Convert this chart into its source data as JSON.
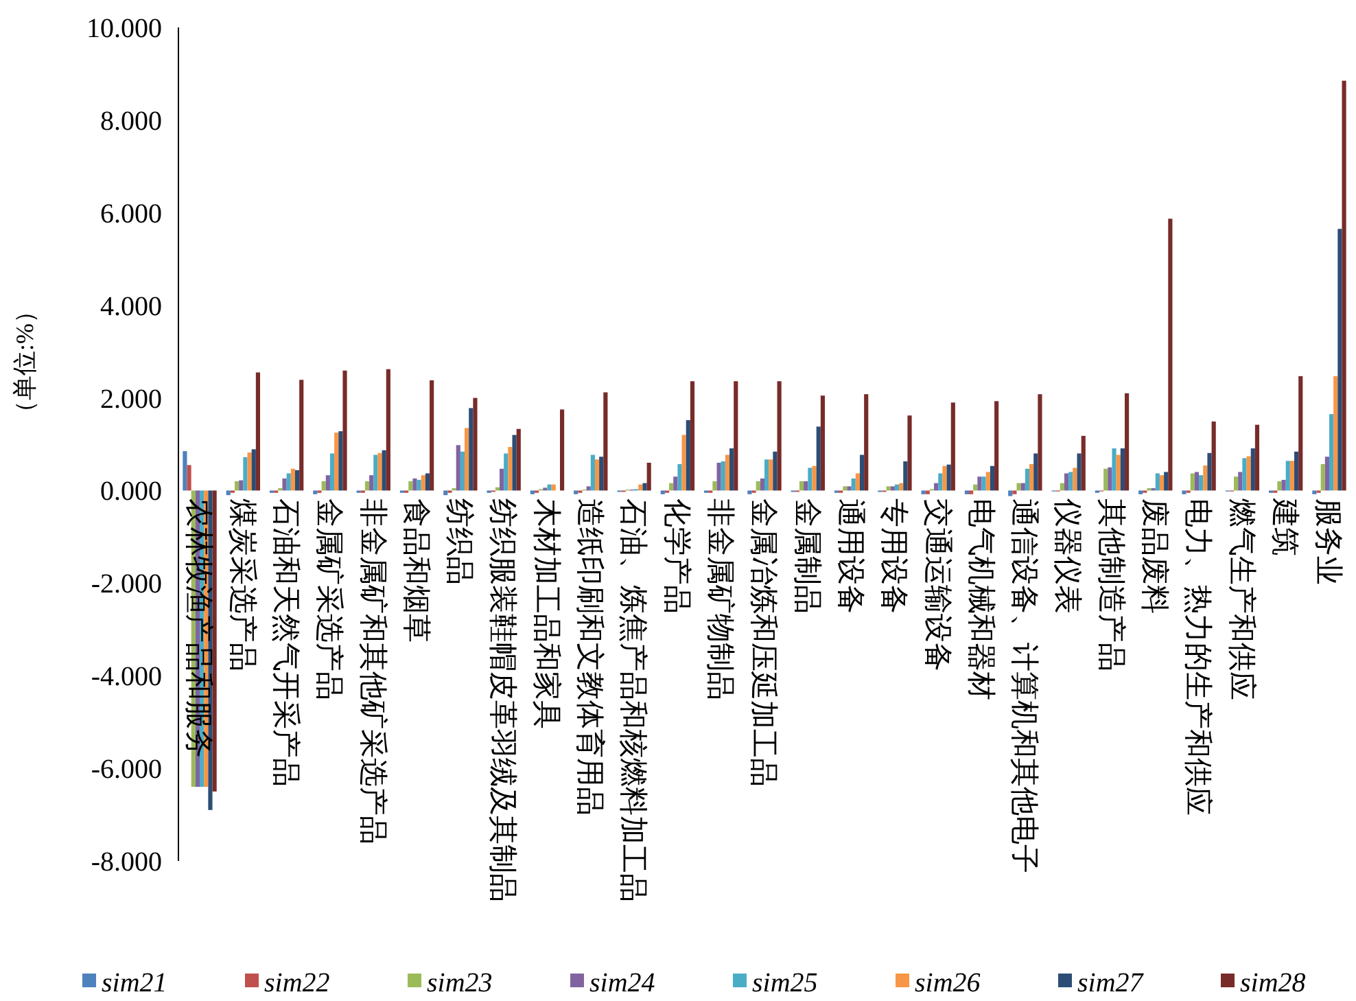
{
  "chart_data": {
    "type": "bar",
    "ylabel": "（单位:%）",
    "categories": [
      "农林牧渔产品和服务",
      "煤炭采选产品",
      "石油和天然气开采产品",
      "金属矿采选产品",
      "非金属矿和其他矿采选产品",
      "食品和烟草",
      "纺织品",
      "纺织服装鞋帽皮革羽绒及其制品",
      "木材加工品和家具",
      "造纸印刷和文教体育用品",
      "石油、炼焦产品和核燃料加工品",
      "化学产品",
      "非金属矿物制品",
      "金属冶炼和压延加工品",
      "金属制品",
      "通用设备",
      "专用设备",
      "交通运输设备",
      "电气机械和器材",
      "通信设备、计算机和其他电子",
      "仪器仪表",
      "其他制造产品",
      "废品废料",
      "电力、热力的生产和供应",
      "燃气生产和供应",
      "建筑",
      "服务业"
    ],
    "series": [
      {
        "name": "sim21",
        "color": "#4f81bd",
        "values": [
          0.85,
          -0.1,
          -0.05,
          -0.08,
          -0.05,
          -0.05,
          -0.1,
          -0.05,
          -0.08,
          -0.08,
          -0.03,
          -0.08,
          -0.05,
          -0.08,
          -0.03,
          -0.05,
          -0.03,
          -0.08,
          -0.08,
          -0.12,
          -0.02,
          -0.05,
          -0.08,
          -0.08,
          -0.02,
          -0.05,
          -0.08
        ]
      },
      {
        "name": "sim22",
        "color": "#c0504d",
        "values": [
          0.55,
          -0.05,
          -0.05,
          -0.05,
          -0.05,
          -0.05,
          -0.05,
          -0.03,
          -0.05,
          -0.05,
          -0.03,
          -0.05,
          -0.05,
          -0.05,
          -0.03,
          -0.05,
          -0.03,
          -0.08,
          -0.08,
          -0.08,
          -0.02,
          -0.02,
          -0.05,
          -0.05,
          -0.02,
          -0.05,
          -0.05
        ]
      },
      {
        "name": "sim23",
        "color": "#9bbb59",
        "values": [
          -6.4,
          0.2,
          0.05,
          0.2,
          0.2,
          0.2,
          0.05,
          0.07,
          0.03,
          0.02,
          0.02,
          0.16,
          0.2,
          0.2,
          0.2,
          0.09,
          0.09,
          0.03,
          0.13,
          0.16,
          0.16,
          0.47,
          0.05,
          0.37,
          0.3,
          0.2,
          0.57
        ]
      },
      {
        "name": "sim24",
        "color": "#8064a2",
        "values": [
          -6.4,
          0.22,
          0.26,
          0.33,
          0.33,
          0.26,
          0.98,
          0.47,
          0.06,
          0.09,
          0.02,
          0.3,
          0.6,
          0.26,
          0.2,
          0.09,
          0.09,
          0.16,
          0.3,
          0.16,
          0.37,
          0.5,
          0.05,
          0.4,
          0.4,
          0.23,
          0.73
        ]
      },
      {
        "name": "sim25",
        "color": "#4bacc6",
        "values": [
          -6.4,
          0.72,
          0.37,
          0.8,
          0.77,
          0.23,
          0.84,
          0.8,
          0.13,
          0.77,
          0.03,
          0.57,
          0.63,
          0.67,
          0.49,
          0.26,
          0.13,
          0.37,
          0.3,
          0.47,
          0.4,
          0.91,
          0.37,
          0.33,
          0.7,
          0.64,
          1.65
        ]
      },
      {
        "name": "sim26",
        "color": "#f79646",
        "values": [
          -6.4,
          0.82,
          0.47,
          1.25,
          0.81,
          0.33,
          1.35,
          0.94,
          0.13,
          0.67,
          0.13,
          1.2,
          0.77,
          0.67,
          0.53,
          0.37,
          0.16,
          0.53,
          0.4,
          0.57,
          0.49,
          0.77,
          0.33,
          0.54,
          0.74,
          0.64,
          2.47
        ]
      },
      {
        "name": "sim27",
        "color": "#2c4d75",
        "values": [
          -6.9,
          0.89,
          0.44,
          1.28,
          0.87,
          0.37,
          1.78,
          1.2,
          0,
          0.73,
          0.16,
          1.52,
          0.91,
          0.84,
          1.38,
          0.77,
          0.63,
          0.56,
          0.53,
          0.8,
          0.8,
          0.91,
          0.4,
          0.81,
          0.91,
          0.84,
          5.65
        ]
      },
      {
        "name": "sim28",
        "color": "#772c2a",
        "values": [
          -6.5,
          2.55,
          2.39,
          2.59,
          2.62,
          2.38,
          2.0,
          1.33,
          1.75,
          2.12,
          0.6,
          2.36,
          2.36,
          2.36,
          2.05,
          2.08,
          1.62,
          1.9,
          1.93,
          2.08,
          1.18,
          2.1,
          5.87,
          1.49,
          1.42,
          2.47,
          8.85
        ]
      }
    ],
    "ylim": [
      -8,
      10
    ],
    "yticks": [
      {
        "value": -8,
        "label": "-8.000"
      },
      {
        "value": -6,
        "label": "-6.000"
      },
      {
        "value": -4,
        "label": "-4.000"
      },
      {
        "value": -2,
        "label": "-2.000"
      },
      {
        "value": 0,
        "label": "0.000"
      },
      {
        "value": 2,
        "label": "2.000"
      },
      {
        "value": 4,
        "label": "4.000"
      },
      {
        "value": 6,
        "label": "6.000"
      },
      {
        "value": 8,
        "label": "8.000"
      },
      {
        "value": 10,
        "label": "10.000"
      }
    ],
    "legend": "bottom"
  }
}
